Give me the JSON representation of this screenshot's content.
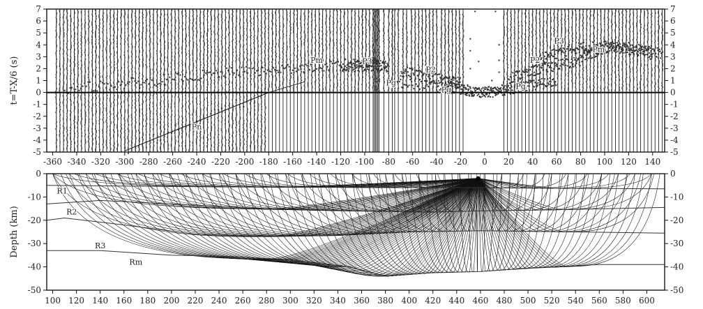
{
  "chart_data": [
    {
      "type": "scatter",
      "ylabel": "t=T-X/6 (s)",
      "xlim": [
        -365,
        150
      ],
      "ylim": [
        -5,
        7
      ],
      "xticks": [
        -360,
        -340,
        -320,
        -300,
        -280,
        -260,
        -240,
        -220,
        -200,
        -180,
        -160,
        -140,
        -120,
        -100,
        -80,
        -60,
        -40,
        -20,
        0,
        20,
        40,
        60,
        80,
        100,
        120,
        140
      ],
      "yticks": [
        -5,
        -4,
        -3,
        -2,
        -1,
        0,
        1,
        2,
        3,
        4,
        5,
        6,
        7
      ],
      "x_reference_line": 0,
      "traces_x": [
        -357,
        -354,
        -351,
        -348,
        -345,
        -342,
        -339,
        -336,
        -333,
        -330,
        -327,
        -324,
        -321,
        -318,
        -315,
        -312,
        -309,
        -306,
        -303,
        -300,
        -297,
        -294,
        -291,
        -288,
        -285,
        -282,
        -279,
        -276,
        -273,
        -270,
        -267,
        -264,
        -261,
        -258,
        -255,
        -252,
        -249,
        -246,
        -243,
        -240,
        -237,
        -234,
        -231,
        -228,
        -225,
        -222,
        -219,
        -216,
        -213,
        -210,
        -207,
        -204,
        -201,
        -198,
        -195,
        -192,
        -189,
        -186,
        -183,
        -180,
        -177,
        -174,
        -171,
        -168,
        -165,
        -162,
        -159,
        -156,
        -153,
        -150,
        -147,
        -144,
        -141,
        -138,
        -135,
        -132,
        -129,
        -126,
        -123,
        -120,
        -117,
        -114,
        -111,
        -108,
        -105,
        -102,
        -99,
        -96,
        -93,
        -92,
        -91,
        -90,
        -89,
        -88,
        -84,
        -80,
        -77,
        -75,
        -72,
        -68,
        -65,
        -61,
        -58,
        -55,
        -52,
        -49,
        -46,
        -43,
        -40,
        -36,
        -33,
        -30,
        -27,
        -24,
        -21,
        -18,
        16,
        19,
        22,
        25,
        28,
        31,
        34,
        37,
        40,
        43,
        46,
        49,
        52,
        55,
        58,
        61,
        64,
        67,
        70,
        73,
        76,
        79,
        82,
        85,
        88,
        91,
        94,
        97,
        100,
        103,
        106,
        109,
        112,
        115,
        118,
        121,
        124,
        127,
        130,
        133,
        136,
        139,
        142,
        145,
        148
      ],
      "annotations": [
        {
          "text": "Pn",
          "x": -240,
          "y": -3.1
        },
        {
          "text": "Pm",
          "x": -140,
          "y": 2.5
        },
        {
          "text": "P3",
          "x": -98,
          "y": 2.4
        },
        {
          "text": "P2",
          "x": -45,
          "y": 1.7
        },
        {
          "text": "Pg",
          "x": -78,
          "y": 0.6
        },
        {
          "text": "Pg",
          "x": -32,
          "y": 0.0
        },
        {
          "text": "P2",
          "x": 42,
          "y": 2.5
        },
        {
          "text": "Pg",
          "x": 30,
          "y": 0.3
        },
        {
          "text": "P3",
          "x": 62,
          "y": 4.1
        },
        {
          "text": "Pm",
          "x": 95,
          "y": 3.4
        }
      ],
      "phases": [
        {
          "name": "Pn",
          "x": [
            -300,
            -180
          ],
          "y": [
            -4.9,
            0
          ]
        },
        {
          "name": "Pm",
          "x": [
            -350,
            -290,
            -240,
            -190,
            -150,
            -110,
            -90
          ],
          "y": [
            0.3,
            0.8,
            1.4,
            1.8,
            2.1,
            2.4,
            2.6
          ]
        },
        {
          "name": "P3",
          "x": [
            -120,
            -100,
            -90,
            -80
          ],
          "y": [
            2.1,
            2.2,
            2.3,
            2.1
          ]
        },
        {
          "name": "P2",
          "x": [
            -70,
            -50,
            -30,
            -20
          ],
          "y": [
            1.8,
            1.4,
            1.0,
            0.8
          ]
        },
        {
          "name": "Pg",
          "x": [
            -80,
            -40,
            -20,
            -10,
            0,
            10,
            20,
            40,
            60
          ],
          "y": [
            0.8,
            0.5,
            0.3,
            0.1,
            0.0,
            0.1,
            0.3,
            0.6,
            0.9
          ]
        },
        {
          "name": "P2",
          "x": [
            20,
            40,
            60,
            80
          ],
          "y": [
            1.2,
            1.8,
            2.3,
            2.6
          ]
        },
        {
          "name": "P3",
          "x": [
            40,
            60,
            80,
            100,
            120,
            140
          ],
          "y": [
            2.6,
            3.3,
            3.8,
            3.9,
            3.6,
            3.2
          ]
        },
        {
          "name": "Pm",
          "x": [
            80,
            95,
            110,
            130,
            148
          ],
          "y": [
            3.0,
            3.5,
            3.9,
            3.6,
            3.3
          ]
        }
      ]
    },
    {
      "type": "line",
      "ylabel": "Depth (km)",
      "xlim": [
        95,
        615
      ],
      "ylim": [
        -50,
        0
      ],
      "xticks": [
        100,
        120,
        140,
        160,
        180,
        200,
        220,
        240,
        260,
        280,
        300,
        320,
        340,
        360,
        380,
        400,
        420,
        440,
        460,
        480,
        500,
        520,
        540,
        560,
        580,
        600
      ],
      "yticks": [
        0,
        -10,
        -20,
        -30,
        -40,
        -50
      ],
      "ytick_labels": [
        "0",
        "-10",
        "-20",
        "-30",
        "-40",
        "-50"
      ],
      "source_x": 458,
      "source_depth": -2,
      "layer_labels": [
        {
          "text": "R1",
          "x": 108,
          "y": -8.5
        },
        {
          "text": "R2",
          "x": 116,
          "y": -17.5
        },
        {
          "text": "R3",
          "x": 140,
          "y": -32
        },
        {
          "text": "Rm",
          "x": 170,
          "y": -39
        }
      ],
      "interfaces": [
        {
          "name": "R1",
          "x": [
            95,
            200,
            300,
            400,
            458,
            520,
            615
          ],
          "y": [
            -5,
            -5.5,
            -5.8,
            -6,
            -6,
            -6.3,
            -6.5
          ]
        },
        {
          "name": "R2",
          "x": [
            95,
            140,
            200,
            280,
            360,
            420,
            458,
            520,
            615
          ],
          "y": [
            -13,
            -11.5,
            -13,
            -15,
            -16,
            -16.5,
            -16,
            -15.5,
            -14.5
          ]
        },
        {
          "name": "R3",
          "x": [
            95,
            110,
            160,
            220,
            280,
            340,
            400,
            460,
            540,
            615
          ],
          "y": [
            -20,
            -19,
            -22,
            -26,
            -27,
            -26.5,
            -25,
            -24.5,
            -25,
            -25.5
          ]
        },
        {
          "name": "Rm",
          "x": [
            95,
            140,
            200,
            250,
            300,
            350,
            380,
            420,
            460,
            500,
            560,
            615
          ],
          "y": [
            -33,
            -33,
            -35,
            -35.5,
            -37,
            -40,
            -44,
            -42.5,
            -42,
            -40.5,
            -39,
            -39
          ]
        }
      ]
    }
  ]
}
